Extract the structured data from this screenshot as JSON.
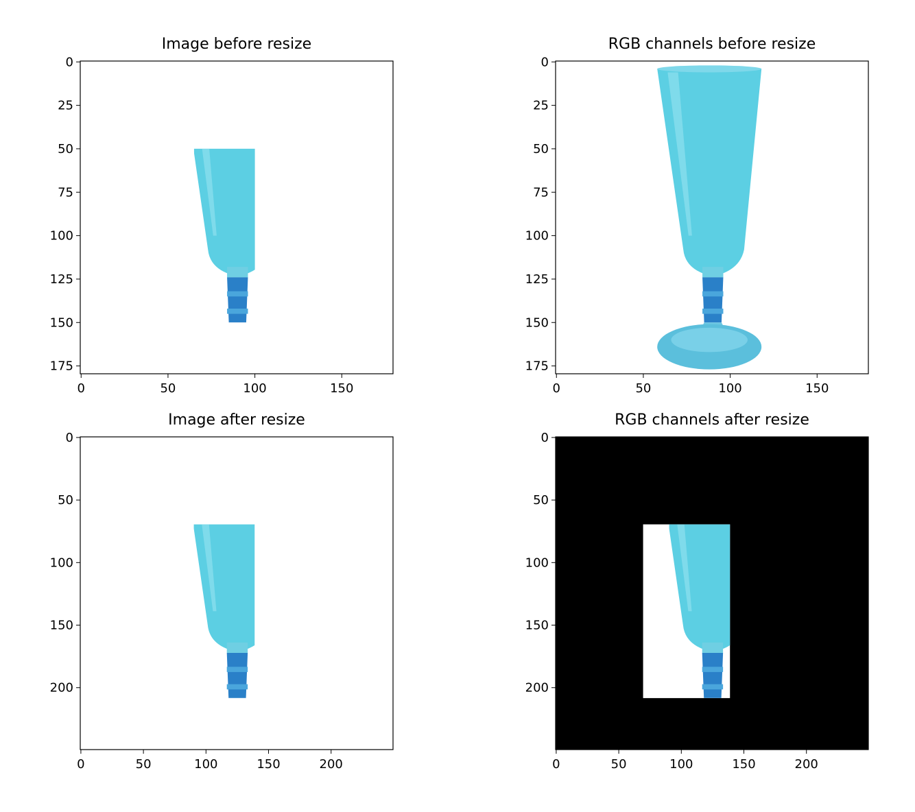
{
  "chart_data": [
    {
      "type": "image",
      "title": "Image before resize",
      "image_size": [
        180,
        180
      ],
      "xticks": [
        0,
        50,
        100,
        150
      ],
      "yticks": [
        0,
        25,
        50,
        75,
        100,
        125,
        150,
        175
      ],
      "background": "#ffffff",
      "content": "cropped glass",
      "crop": {
        "x": [
          65,
          100
        ],
        "y": [
          50,
          150
        ]
      }
    },
    {
      "type": "image",
      "title": "RGB channels before resize",
      "image_size": [
        180,
        180
      ],
      "xticks": [
        0,
        50,
        100,
        150
      ],
      "yticks": [
        0,
        25,
        50,
        75,
        100,
        125,
        150,
        175
      ],
      "background": "#ffffff",
      "content": "full glass"
    },
    {
      "type": "image",
      "title": "Image after resize",
      "image_size": [
        250,
        250
      ],
      "xticks": [
        0,
        50,
        100,
        150,
        200
      ],
      "yticks": [
        0,
        50,
        100,
        150,
        200
      ],
      "background": "#ffffff",
      "content": "cropped glass resized",
      "crop": {
        "x": [
          90,
          140
        ],
        "y": [
          68,
          207
        ]
      }
    },
    {
      "type": "image",
      "title": "RGB channels after resize",
      "image_size": [
        250,
        250
      ],
      "xticks": [
        0,
        50,
        100,
        150,
        200
      ],
      "yticks": [
        0,
        50,
        100,
        150,
        200
      ],
      "background": "#000000",
      "content": "padded crop resized",
      "padded_region": {
        "x": [
          69,
          140
        ],
        "y": [
          68,
          207
        ]
      }
    }
  ],
  "colors": {
    "glass": "#5ccfe3",
    "glass_dark": "#2a80c8",
    "foot": "#5bbfdc",
    "pad": "#000000"
  }
}
